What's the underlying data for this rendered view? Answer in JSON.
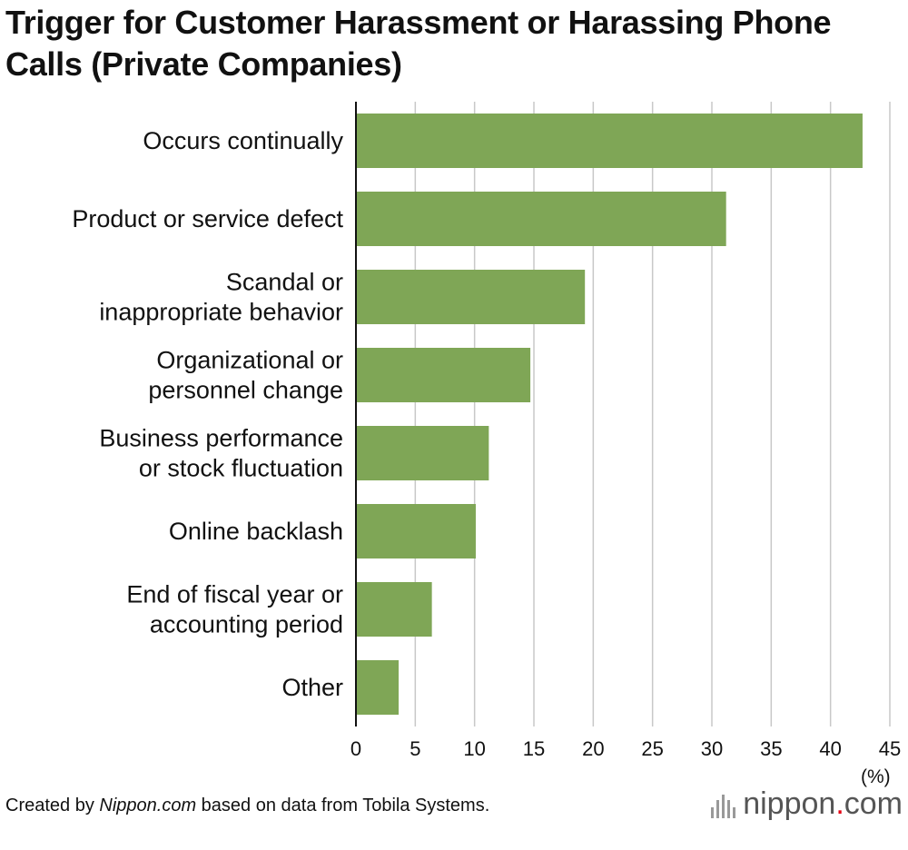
{
  "title": "Trigger for Customer Harassment or Harassing Phone Calls (Private Companies)",
  "chart_data": {
    "type": "bar",
    "orientation": "horizontal",
    "title": "Trigger for Customer Harassment or Harassing Phone Calls (Private Companies)",
    "categories": [
      [
        "Occurs continually"
      ],
      [
        "Product or service defect"
      ],
      [
        "Scandal or",
        "inappropriate behavior"
      ],
      [
        "Organizational or",
        "personnel change"
      ],
      [
        "Business performance",
        "or stock fluctuation"
      ],
      [
        "Online backlash"
      ],
      [
        "End of fiscal year or",
        "accounting period"
      ],
      [
        "Other"
      ]
    ],
    "values": [
      42.7,
      31.2,
      19.3,
      14.7,
      11.2,
      10.1,
      6.4,
      3.6
    ],
    "xlim": [
      0,
      45
    ],
    "ticks": [
      "0",
      "5",
      "10",
      "15",
      "20",
      "25",
      "30",
      "35",
      "40",
      "45"
    ],
    "unit": "(%)",
    "grid": true,
    "bar_color": "#7fa656",
    "grid_color": "#c8c8c8"
  },
  "footer": {
    "prefix": "Created by ",
    "source_italic": "Nippon.com",
    "suffix": " based on data from Tobila Systems."
  },
  "brand": {
    "name": "nippon",
    "dot": ".",
    "tld": "com"
  }
}
